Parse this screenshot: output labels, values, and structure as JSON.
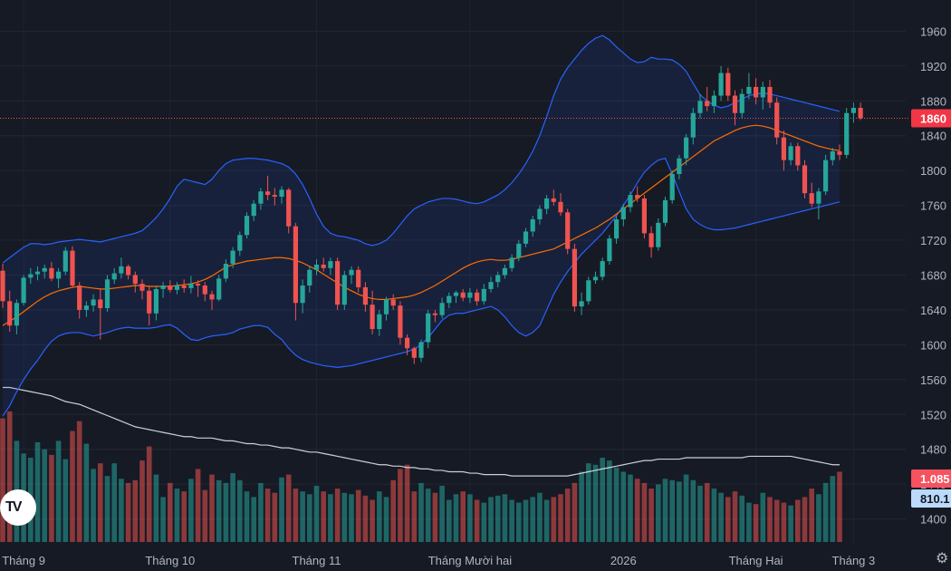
{
  "chart_data": {
    "type": "candlestick",
    "y_axis": {
      "ticks": [
        "1960",
        "1920",
        "1880",
        "1840",
        "1800",
        "1760",
        "1720",
        "1680",
        "1640",
        "1600",
        "1560",
        "1520",
        "1480",
        "1440",
        "1400"
      ],
      "ylim": [
        1385,
        1975
      ]
    },
    "x_axis": {
      "labels": [
        {
          "text": "Tháng 9",
          "index": 3
        },
        {
          "text": "Tháng 10",
          "index": 24
        },
        {
          "text": "Tháng 11",
          "index": 45
        },
        {
          "text": "Tháng Mười hai",
          "index": 67
        },
        {
          "text": "2026",
          "index": 89
        },
        {
          "text": "Tháng Hai",
          "index": 108
        },
        {
          "text": "Tháng 3",
          "index": 122
        }
      ]
    },
    "last_price": "1860",
    "volume_tag": "1.085",
    "volume_ma_tag": "810.1",
    "colors": {
      "up": "#26a69a",
      "down": "#ef5350",
      "bb_band": "#2962ff",
      "basis": "#ff6d00",
      "volume_ma": "#e0e3eb",
      "price_line": "#ef5350"
    },
    "candles": [
      [
        1685,
        1693,
        1642,
        1650
      ],
      [
        1650,
        1662,
        1615,
        1622
      ],
      [
        1622,
        1652,
        1612,
        1648
      ],
      [
        1648,
        1680,
        1645,
        1677
      ],
      [
        1677,
        1688,
        1670,
        1681
      ],
      [
        1681,
        1690,
        1674,
        1684
      ],
      [
        1684,
        1692,
        1676,
        1688
      ],
      [
        1688,
        1695,
        1673,
        1676
      ],
      [
        1676,
        1688,
        1665,
        1684
      ],
      [
        1684,
        1712,
        1680,
        1708
      ],
      [
        1708,
        1713,
        1665,
        1668
      ],
      [
        1668,
        1672,
        1630,
        1640
      ],
      [
        1640,
        1650,
        1632,
        1645
      ],
      [
        1645,
        1658,
        1638,
        1652
      ],
      [
        1652,
        1665,
        1606,
        1642
      ],
      [
        1642,
        1680,
        1638,
        1675
      ],
      [
        1675,
        1688,
        1670,
        1682
      ],
      [
        1682,
        1700,
        1676,
        1690
      ],
      [
        1690,
        1692,
        1675,
        1680
      ],
      [
        1680,
        1684,
        1660,
        1670
      ],
      [
        1670,
        1675,
        1652,
        1662
      ],
      [
        1662,
        1668,
        1622,
        1636
      ],
      [
        1636,
        1668,
        1628,
        1664
      ],
      [
        1664,
        1672,
        1654,
        1668
      ],
      [
        1668,
        1674,
        1660,
        1663
      ],
      [
        1663,
        1672,
        1658,
        1668
      ],
      [
        1668,
        1675,
        1660,
        1665
      ],
      [
        1665,
        1679,
        1659,
        1670
      ],
      [
        1670,
        1674,
        1655,
        1668
      ],
      [
        1668,
        1672,
        1650,
        1658
      ],
      [
        1658,
        1662,
        1640,
        1652
      ],
      [
        1652,
        1680,
        1650,
        1676
      ],
      [
        1676,
        1698,
        1672,
        1693
      ],
      [
        1693,
        1712,
        1688,
        1708
      ],
      [
        1708,
        1730,
        1702,
        1726
      ],
      [
        1726,
        1752,
        1722,
        1748
      ],
      [
        1748,
        1766,
        1742,
        1762
      ],
      [
        1762,
        1780,
        1755,
        1776
      ],
      [
        1776,
        1794,
        1766,
        1772
      ],
      [
        1772,
        1780,
        1760,
        1770
      ],
      [
        1770,
        1782,
        1762,
        1778
      ],
      [
        1778,
        1780,
        1728,
        1736
      ],
      [
        1736,
        1740,
        1628,
        1648
      ],
      [
        1648,
        1675,
        1636,
        1668
      ],
      [
        1668,
        1690,
        1660,
        1686
      ],
      [
        1686,
        1698,
        1680,
        1692
      ],
      [
        1692,
        1700,
        1684,
        1688
      ],
      [
        1688,
        1700,
        1680,
        1696
      ],
      [
        1696,
        1700,
        1640,
        1646
      ],
      [
        1646,
        1685,
        1640,
        1680
      ],
      [
        1680,
        1690,
        1670,
        1686
      ],
      [
        1686,
        1690,
        1660,
        1666
      ],
      [
        1666,
        1672,
        1638,
        1646
      ],
      [
        1646,
        1662,
        1612,
        1618
      ],
      [
        1618,
        1640,
        1610,
        1635
      ],
      [
        1635,
        1655,
        1628,
        1652
      ],
      [
        1652,
        1658,
        1640,
        1645
      ],
      [
        1645,
        1650,
        1600,
        1608
      ],
      [
        1608,
        1612,
        1588,
        1596
      ],
      [
        1596,
        1598,
        1578,
        1585
      ],
      [
        1585,
        1606,
        1580,
        1603
      ],
      [
        1603,
        1640,
        1596,
        1636
      ],
      [
        1636,
        1640,
        1626,
        1634
      ],
      [
        1634,
        1654,
        1630,
        1648
      ],
      [
        1648,
        1660,
        1642,
        1656
      ],
      [
        1656,
        1662,
        1648,
        1660
      ],
      [
        1660,
        1664,
        1650,
        1654
      ],
      [
        1654,
        1665,
        1648,
        1660
      ],
      [
        1660,
        1664,
        1645,
        1650
      ],
      [
        1650,
        1670,
        1646,
        1664
      ],
      [
        1664,
        1678,
        1660,
        1672
      ],
      [
        1672,
        1684,
        1666,
        1680
      ],
      [
        1680,
        1692,
        1676,
        1688
      ],
      [
        1688,
        1704,
        1684,
        1700
      ],
      [
        1700,
        1720,
        1696,
        1716
      ],
      [
        1716,
        1734,
        1712,
        1730
      ],
      [
        1730,
        1748,
        1724,
        1744
      ],
      [
        1744,
        1760,
        1738,
        1756
      ],
      [
        1756,
        1772,
        1750,
        1768
      ],
      [
        1768,
        1778,
        1760,
        1764
      ],
      [
        1764,
        1774,
        1748,
        1752
      ],
      [
        1752,
        1756,
        1704,
        1710
      ],
      [
        1710,
        1716,
        1638,
        1644
      ],
      [
        1644,
        1660,
        1634,
        1650
      ],
      [
        1650,
        1678,
        1646,
        1674
      ],
      [
        1674,
        1684,
        1670,
        1678
      ],
      [
        1678,
        1700,
        1674,
        1696
      ],
      [
        1696,
        1726,
        1692,
        1722
      ],
      [
        1722,
        1748,
        1716,
        1744
      ],
      [
        1744,
        1762,
        1736,
        1758
      ],
      [
        1758,
        1776,
        1752,
        1772
      ],
      [
        1772,
        1782,
        1764,
        1768
      ],
      [
        1768,
        1772,
        1722,
        1728
      ],
      [
        1728,
        1736,
        1700,
        1712
      ],
      [
        1712,
        1745,
        1708,
        1740
      ],
      [
        1740,
        1770,
        1736,
        1766
      ],
      [
        1766,
        1800,
        1762,
        1796
      ],
      [
        1796,
        1818,
        1790,
        1814
      ],
      [
        1814,
        1842,
        1806,
        1838
      ],
      [
        1838,
        1872,
        1830,
        1866
      ],
      [
        1866,
        1888,
        1860,
        1880
      ],
      [
        1880,
        1896,
        1868,
        1874
      ],
      [
        1874,
        1892,
        1866,
        1886
      ],
      [
        1886,
        1920,
        1880,
        1912
      ],
      [
        1912,
        1918,
        1880,
        1886
      ],
      [
        1886,
        1892,
        1852,
        1866
      ],
      [
        1866,
        1894,
        1860,
        1888
      ],
      [
        1888,
        1912,
        1882,
        1896
      ],
      [
        1896,
        1906,
        1876,
        1884
      ],
      [
        1884,
        1902,
        1870,
        1896
      ],
      [
        1896,
        1904,
        1872,
        1878
      ],
      [
        1878,
        1884,
        1830,
        1838
      ],
      [
        1838,
        1846,
        1800,
        1812
      ],
      [
        1812,
        1832,
        1806,
        1828
      ],
      [
        1828,
        1832,
        1800,
        1806
      ],
      [
        1806,
        1812,
        1768,
        1774
      ],
      [
        1774,
        1786,
        1758,
        1762
      ],
      [
        1762,
        1780,
        1744,
        1776
      ],
      [
        1776,
        1818,
        1772,
        1812
      ],
      [
        1812,
        1826,
        1806,
        1822
      ],
      [
        1822,
        1830,
        1812,
        1818
      ],
      [
        1818,
        1872,
        1814,
        1866
      ],
      [
        1866,
        1878,
        1855,
        1872
      ],
      [
        1872,
        1878,
        1858,
        1860
      ]
    ],
    "basis": [
      1622,
      1627,
      1632,
      1638,
      1644,
      1650,
      1655,
      1659,
      1662,
      1664,
      1666,
      1667,
      1666,
      1665,
      1664,
      1664,
      1665,
      1666,
      1667,
      1668,
      1668,
      1667,
      1667,
      1667,
      1667,
      1668,
      1669,
      1670,
      1672,
      1675,
      1679,
      1684,
      1689,
      1692,
      1694,
      1696,
      1697,
      1698,
      1699,
      1700,
      1700,
      1699,
      1697,
      1694,
      1690,
      1686,
      1681,
      1676,
      1671,
      1666,
      1662,
      1658,
      1655,
      1653,
      1652,
      1652,
      1653,
      1654,
      1655,
      1657,
      1660,
      1664,
      1668,
      1673,
      1678,
      1683,
      1688,
      1692,
      1695,
      1697,
      1698,
      1697,
      1697,
      1698,
      1700,
      1702,
      1704,
      1706,
      1708,
      1710,
      1714,
      1718,
      1722,
      1726,
      1730,
      1734,
      1739,
      1744,
      1750,
      1756,
      1762,
      1768,
      1774,
      1780,
      1786,
      1792,
      1798,
      1804,
      1810,
      1816,
      1822,
      1828,
      1834,
      1838,
      1842,
      1846,
      1849,
      1851,
      1852,
      1851,
      1849,
      1846,
      1843,
      1840,
      1837,
      1834,
      1831,
      1828,
      1826,
      1824,
      1823
    ],
    "upper_band": [
      1694,
      1700,
      1706,
      1712,
      1716,
      1716,
      1715,
      1716,
      1718,
      1719,
      1720,
      1721,
      1720,
      1719,
      1718,
      1720,
      1722,
      1724,
      1726,
      1728,
      1731,
      1738,
      1746,
      1756,
      1768,
      1782,
      1790,
      1788,
      1786,
      1784,
      1790,
      1800,
      1808,
      1812,
      1813,
      1814,
      1814,
      1813,
      1812,
      1810,
      1808,
      1804,
      1796,
      1784,
      1768,
      1750,
      1736,
      1728,
      1725,
      1724,
      1722,
      1720,
      1716,
      1714,
      1716,
      1720,
      1728,
      1738,
      1748,
      1756,
      1760,
      1764,
      1766,
      1768,
      1768,
      1767,
      1765,
      1763,
      1762,
      1764,
      1768,
      1772,
      1778,
      1786,
      1796,
      1808,
      1822,
      1840,
      1862,
      1886,
      1905,
      1918,
      1928,
      1938,
      1946,
      1952,
      1955,
      1950,
      1942,
      1935,
      1928,
      1924,
      1925,
      1930,
      1928,
      1928,
      1927,
      1922,
      1914,
      1900,
      1887,
      1880,
      1875,
      1872,
      1874,
      1878,
      1882,
      1886,
      1888,
      1889,
      1888,
      1886,
      1884,
      1882,
      1880,
      1878,
      1876,
      1874,
      1872,
      1870,
      1868
    ],
    "lower_band": [
      1518,
      1530,
      1546,
      1560,
      1572,
      1582,
      1594,
      1604,
      1610,
      1613,
      1614,
      1614,
      1612,
      1610,
      1612,
      1614,
      1617,
      1619,
      1620,
      1619,
      1619,
      1619,
      1620,
      1622,
      1623,
      1619,
      1612,
      1606,
      1605,
      1608,
      1610,
      1611,
      1612,
      1614,
      1618,
      1620,
      1622,
      1622,
      1620,
      1612,
      1606,
      1596,
      1588,
      1583,
      1580,
      1578,
      1576,
      1575,
      1574,
      1575,
      1576,
      1578,
      1580,
      1582,
      1584,
      1586,
      1588,
      1590,
      1592,
      1595,
      1600,
      1608,
      1618,
      1628,
      1634,
      1636,
      1636,
      1638,
      1640,
      1642,
      1644,
      1640,
      1632,
      1622,
      1614,
      1610,
      1614,
      1622,
      1640,
      1658,
      1672,
      1684,
      1694,
      1704,
      1712,
      1720,
      1728,
      1738,
      1748,
      1760,
      1772,
      1786,
      1798,
      1806,
      1812,
      1814,
      1796,
      1776,
      1756,
      1744,
      1738,
      1734,
      1732,
      1732,
      1733,
      1734,
      1736,
      1738,
      1740,
      1742,
      1744,
      1746,
      1748,
      1750,
      1752,
      1754,
      1756,
      1758,
      1760,
      1762,
      1764
    ],
    "volume": [
      0.88,
      0.93,
      0.72,
      0.63,
      0.6,
      0.71,
      0.66,
      0.62,
      0.72,
      0.59,
      0.79,
      0.86,
      0.7,
      0.52,
      0.56,
      0.47,
      0.56,
      0.45,
      0.42,
      0.44,
      0.58,
      0.68,
      0.48,
      0.32,
      0.42,
      0.38,
      0.36,
      0.45,
      0.52,
      0.37,
      0.48,
      0.44,
      0.42,
      0.49,
      0.44,
      0.36,
      0.32,
      0.42,
      0.38,
      0.35,
      0.46,
      0.48,
      0.38,
      0.36,
      0.34,
      0.4,
      0.36,
      0.34,
      0.38,
      0.35,
      0.34,
      0.37,
      0.33,
      0.3,
      0.36,
      0.32,
      0.44,
      0.52,
      0.55,
      0.36,
      0.42,
      0.38,
      0.35,
      0.4,
      0.3,
      0.34,
      0.36,
      0.34,
      0.3,
      0.28,
      0.32,
      0.33,
      0.34,
      0.3,
      0.28,
      0.3,
      0.32,
      0.35,
      0.3,
      0.32,
      0.34,
      0.38,
      0.42,
      0.5,
      0.56,
      0.55,
      0.6,
      0.58,
      0.53,
      0.5,
      0.48,
      0.45,
      0.42,
      0.38,
      0.41,
      0.45,
      0.44,
      0.43,
      0.48,
      0.44,
      0.4,
      0.42,
      0.38,
      0.35,
      0.32,
      0.36,
      0.33,
      0.28,
      0.27,
      0.35,
      0.32,
      0.3,
      0.28,
      0.26,
      0.3,
      0.32,
      0.38,
      0.34,
      0.42,
      0.47,
      0.5
    ],
    "volume_ma": [
      1.1,
      1.1,
      1.09,
      1.08,
      1.07,
      1.06,
      1.05,
      1.04,
      1.02,
      1.0,
      0.99,
      0.98,
      0.96,
      0.94,
      0.92,
      0.9,
      0.88,
      0.86,
      0.84,
      0.82,
      0.81,
      0.8,
      0.79,
      0.78,
      0.77,
      0.76,
      0.75,
      0.75,
      0.74,
      0.74,
      0.74,
      0.73,
      0.72,
      0.72,
      0.71,
      0.7,
      0.7,
      0.69,
      0.69,
      0.68,
      0.67,
      0.67,
      0.66,
      0.65,
      0.64,
      0.64,
      0.63,
      0.62,
      0.61,
      0.6,
      0.59,
      0.58,
      0.57,
      0.56,
      0.55,
      0.55,
      0.54,
      0.54,
      0.53,
      0.53,
      0.52,
      0.52,
      0.51,
      0.51,
      0.5,
      0.5,
      0.5,
      0.49,
      0.49,
      0.48,
      0.48,
      0.48,
      0.48,
      0.47,
      0.47,
      0.47,
      0.47,
      0.47,
      0.47,
      0.47,
      0.47,
      0.47,
      0.48,
      0.49,
      0.5,
      0.51,
      0.52,
      0.53,
      0.54,
      0.55,
      0.56,
      0.57,
      0.58,
      0.58,
      0.59,
      0.59,
      0.59,
      0.59,
      0.6,
      0.6,
      0.6,
      0.6,
      0.6,
      0.6,
      0.6,
      0.6,
      0.6,
      0.61,
      0.61,
      0.61,
      0.61,
      0.61,
      0.61,
      0.61,
      0.6,
      0.59,
      0.58,
      0.57,
      0.56,
      0.55,
      0.55
    ]
  },
  "ui": {
    "logo_text": "TV",
    "settings_icon": "gear-icon"
  }
}
